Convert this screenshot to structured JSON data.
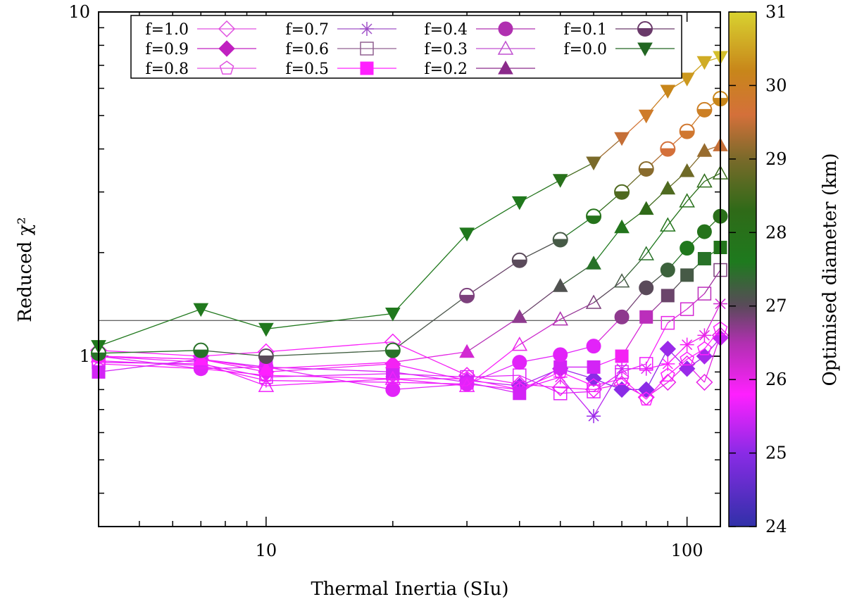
{
  "chart_data": {
    "type": "line",
    "title": "",
    "xlabel": "Thermal Inertia (SIu)",
    "ylabel": "Reduced χ²",
    "xscale": "log",
    "yscale": "log",
    "xlim": [
      4,
      120
    ],
    "ylim": [
      0.32,
      10
    ],
    "x": [
      4,
      7,
      10,
      20,
      30,
      40,
      50,
      60,
      70,
      80,
      90,
      100,
      110,
      120
    ],
    "x_tick_labels": [
      "10",
      "100"
    ],
    "y_tick_labels": [
      "1",
      "10"
    ],
    "reference_line_y": 1.27,
    "legend_position": "top",
    "series": [
      {
        "name": "f=1.0",
        "marker": "diamond-open",
        "values": [
          1.04,
          1.0,
          1.03,
          1.1,
          0.88,
          0.83,
          0.81,
          0.8,
          0.83,
          0.76,
          0.84,
          0.95,
          0.84,
          1.15
        ],
        "diameters": [
          25.8,
          25.8,
          25.8,
          25.9,
          25.9,
          25.9,
          25.9,
          25.9,
          26.0,
          26.0,
          26.0,
          26.0,
          26.0,
          26.1
        ]
      },
      {
        "name": "f=0.9",
        "marker": "diamond-filled",
        "values": [
          1.0,
          0.98,
          0.9,
          0.95,
          0.85,
          0.82,
          0.92,
          0.86,
          0.8,
          0.8,
          1.05,
          0.92,
          1.0,
          1.13
        ],
        "diameters": [
          25.9,
          25.9,
          25.9,
          25.9,
          25.5,
          25.2,
          25.3,
          25.0,
          25.0,
          25.0,
          25.1,
          25.1,
          25.2,
          25.4
        ]
      },
      {
        "name": "f=0.8",
        "marker": "pentagon-open",
        "values": [
          0.95,
          0.92,
          0.88,
          0.86,
          0.86,
          0.8,
          0.9,
          0.82,
          0.86,
          0.75,
          0.88,
          0.98,
          1.05,
          1.2
        ],
        "diameters": [
          25.8,
          25.8,
          25.8,
          25.8,
          25.8,
          25.8,
          25.8,
          25.8,
          25.8,
          25.8,
          25.8,
          25.8,
          25.8,
          25.8
        ]
      },
      {
        "name": "f=0.7",
        "marker": "star",
        "values": [
          0.97,
          0.94,
          0.85,
          0.84,
          0.83,
          0.8,
          0.87,
          0.67,
          0.92,
          0.92,
          0.95,
          1.08,
          1.15,
          1.42
        ],
        "diameters": [
          25.7,
          25.7,
          25.7,
          25.7,
          25.7,
          25.7,
          25.7,
          25.1,
          25.5,
          25.6,
          25.8,
          25.9,
          26.0,
          26.2
        ]
      },
      {
        "name": "f=0.6",
        "marker": "square-open",
        "values": [
          0.96,
          0.95,
          0.87,
          0.89,
          0.87,
          0.88,
          0.78,
          0.79,
          0.9,
          0.95,
          1.25,
          1.37,
          1.52,
          1.78
        ],
        "diameters": [
          25.6,
          25.6,
          25.6,
          25.6,
          25.6,
          25.6,
          25.6,
          25.6,
          25.6,
          25.7,
          26.0,
          26.2,
          26.4,
          26.8
        ]
      },
      {
        "name": "f=0.5",
        "marker": "square-filled",
        "values": [
          0.9,
          0.98,
          0.93,
          0.9,
          0.84,
          0.78,
          0.93,
          0.93,
          1.0,
          1.3,
          1.5,
          1.72,
          1.92,
          2.07
        ],
        "diameters": [
          25.5,
          25.5,
          25.5,
          25.5,
          25.5,
          25.5,
          25.5,
          25.5,
          25.9,
          26.4,
          26.9,
          27.2,
          27.5,
          27.8
        ]
      },
      {
        "name": "f=0.4",
        "marker": "circle-filled",
        "values": [
          1.0,
          0.92,
          0.93,
          0.8,
          0.83,
          0.96,
          1.01,
          1.07,
          1.3,
          1.58,
          1.78,
          2.06,
          2.3,
          2.55
        ],
        "diameters": [
          25.6,
          25.6,
          25.6,
          25.6,
          25.6,
          25.6,
          25.6,
          25.6,
          26.7,
          27.0,
          27.3,
          27.7,
          27.9,
          28.1
        ]
      },
      {
        "name": "f=0.3",
        "marker": "triangle-up-open",
        "values": [
          1.0,
          0.96,
          0.82,
          0.86,
          0.82,
          1.08,
          1.28,
          1.43,
          1.65,
          1.98,
          2.4,
          2.82,
          3.22,
          3.4
        ],
        "diameters": [
          25.7,
          25.7,
          25.7,
          25.7,
          25.7,
          26.0,
          26.5,
          26.8,
          27.2,
          27.5,
          27.8,
          28.0,
          28.2,
          28.4
        ]
      },
      {
        "name": "f=0.2",
        "marker": "triangle-up-filled",
        "values": [
          1.0,
          0.98,
          0.92,
          0.96,
          1.03,
          1.3,
          1.6,
          1.86,
          2.37,
          2.68,
          3.07,
          3.45,
          3.95,
          4.1
        ],
        "diameters": [
          25.8,
          25.8,
          25.8,
          25.9,
          26.2,
          26.7,
          27.1,
          27.5,
          27.8,
          28.3,
          28.6,
          28.9,
          29.2,
          29.5
        ]
      },
      {
        "name": "f=0.1",
        "marker": "circle-half",
        "values": [
          1.02,
          1.04,
          1.0,
          1.04,
          1.5,
          1.9,
          2.18,
          2.55,
          3.0,
          3.5,
          4.0,
          4.5,
          5.2,
          5.6
        ],
        "diameters": [
          27.5,
          27.5,
          27.0,
          27.5,
          26.8,
          27.0,
          27.2,
          27.9,
          28.6,
          29.1,
          29.6,
          29.8,
          30.0,
          30.2
        ]
      },
      {
        "name": "f=0.0",
        "marker": "triangle-down-filled",
        "values": [
          1.07,
          1.37,
          1.2,
          1.33,
          2.27,
          2.8,
          3.25,
          3.65,
          4.3,
          5.0,
          5.9,
          6.4,
          7.15,
          7.4
        ],
        "diameters": [
          27.7,
          27.7,
          27.7,
          27.7,
          27.7,
          27.7,
          28.0,
          29.0,
          29.5,
          29.9,
          30.2,
          30.4,
          30.6,
          30.8
        ]
      }
    ],
    "colorbar": {
      "label": "Optimised diameter (km)",
      "min": 24,
      "max": 31,
      "tick_labels": [
        "24",
        "25",
        "26",
        "27",
        "28",
        "29",
        "30",
        "31"
      ],
      "stops": [
        {
          "value": 24.0,
          "color": "#3030a8"
        },
        {
          "value": 25.0,
          "color": "#8a2be6"
        },
        {
          "value": 25.8,
          "color": "#ff20ff"
        },
        {
          "value": 26.5,
          "color": "#b030b0"
        },
        {
          "value": 27.0,
          "color": "#5a4a5a"
        },
        {
          "value": 27.6,
          "color": "#1e7a1e"
        },
        {
          "value": 28.3,
          "color": "#2f6a18"
        },
        {
          "value": 29.0,
          "color": "#7a6a2a"
        },
        {
          "value": 29.6,
          "color": "#d4703a"
        },
        {
          "value": 30.2,
          "color": "#c8861a"
        },
        {
          "value": 31.0,
          "color": "#d8d230"
        }
      ]
    }
  }
}
